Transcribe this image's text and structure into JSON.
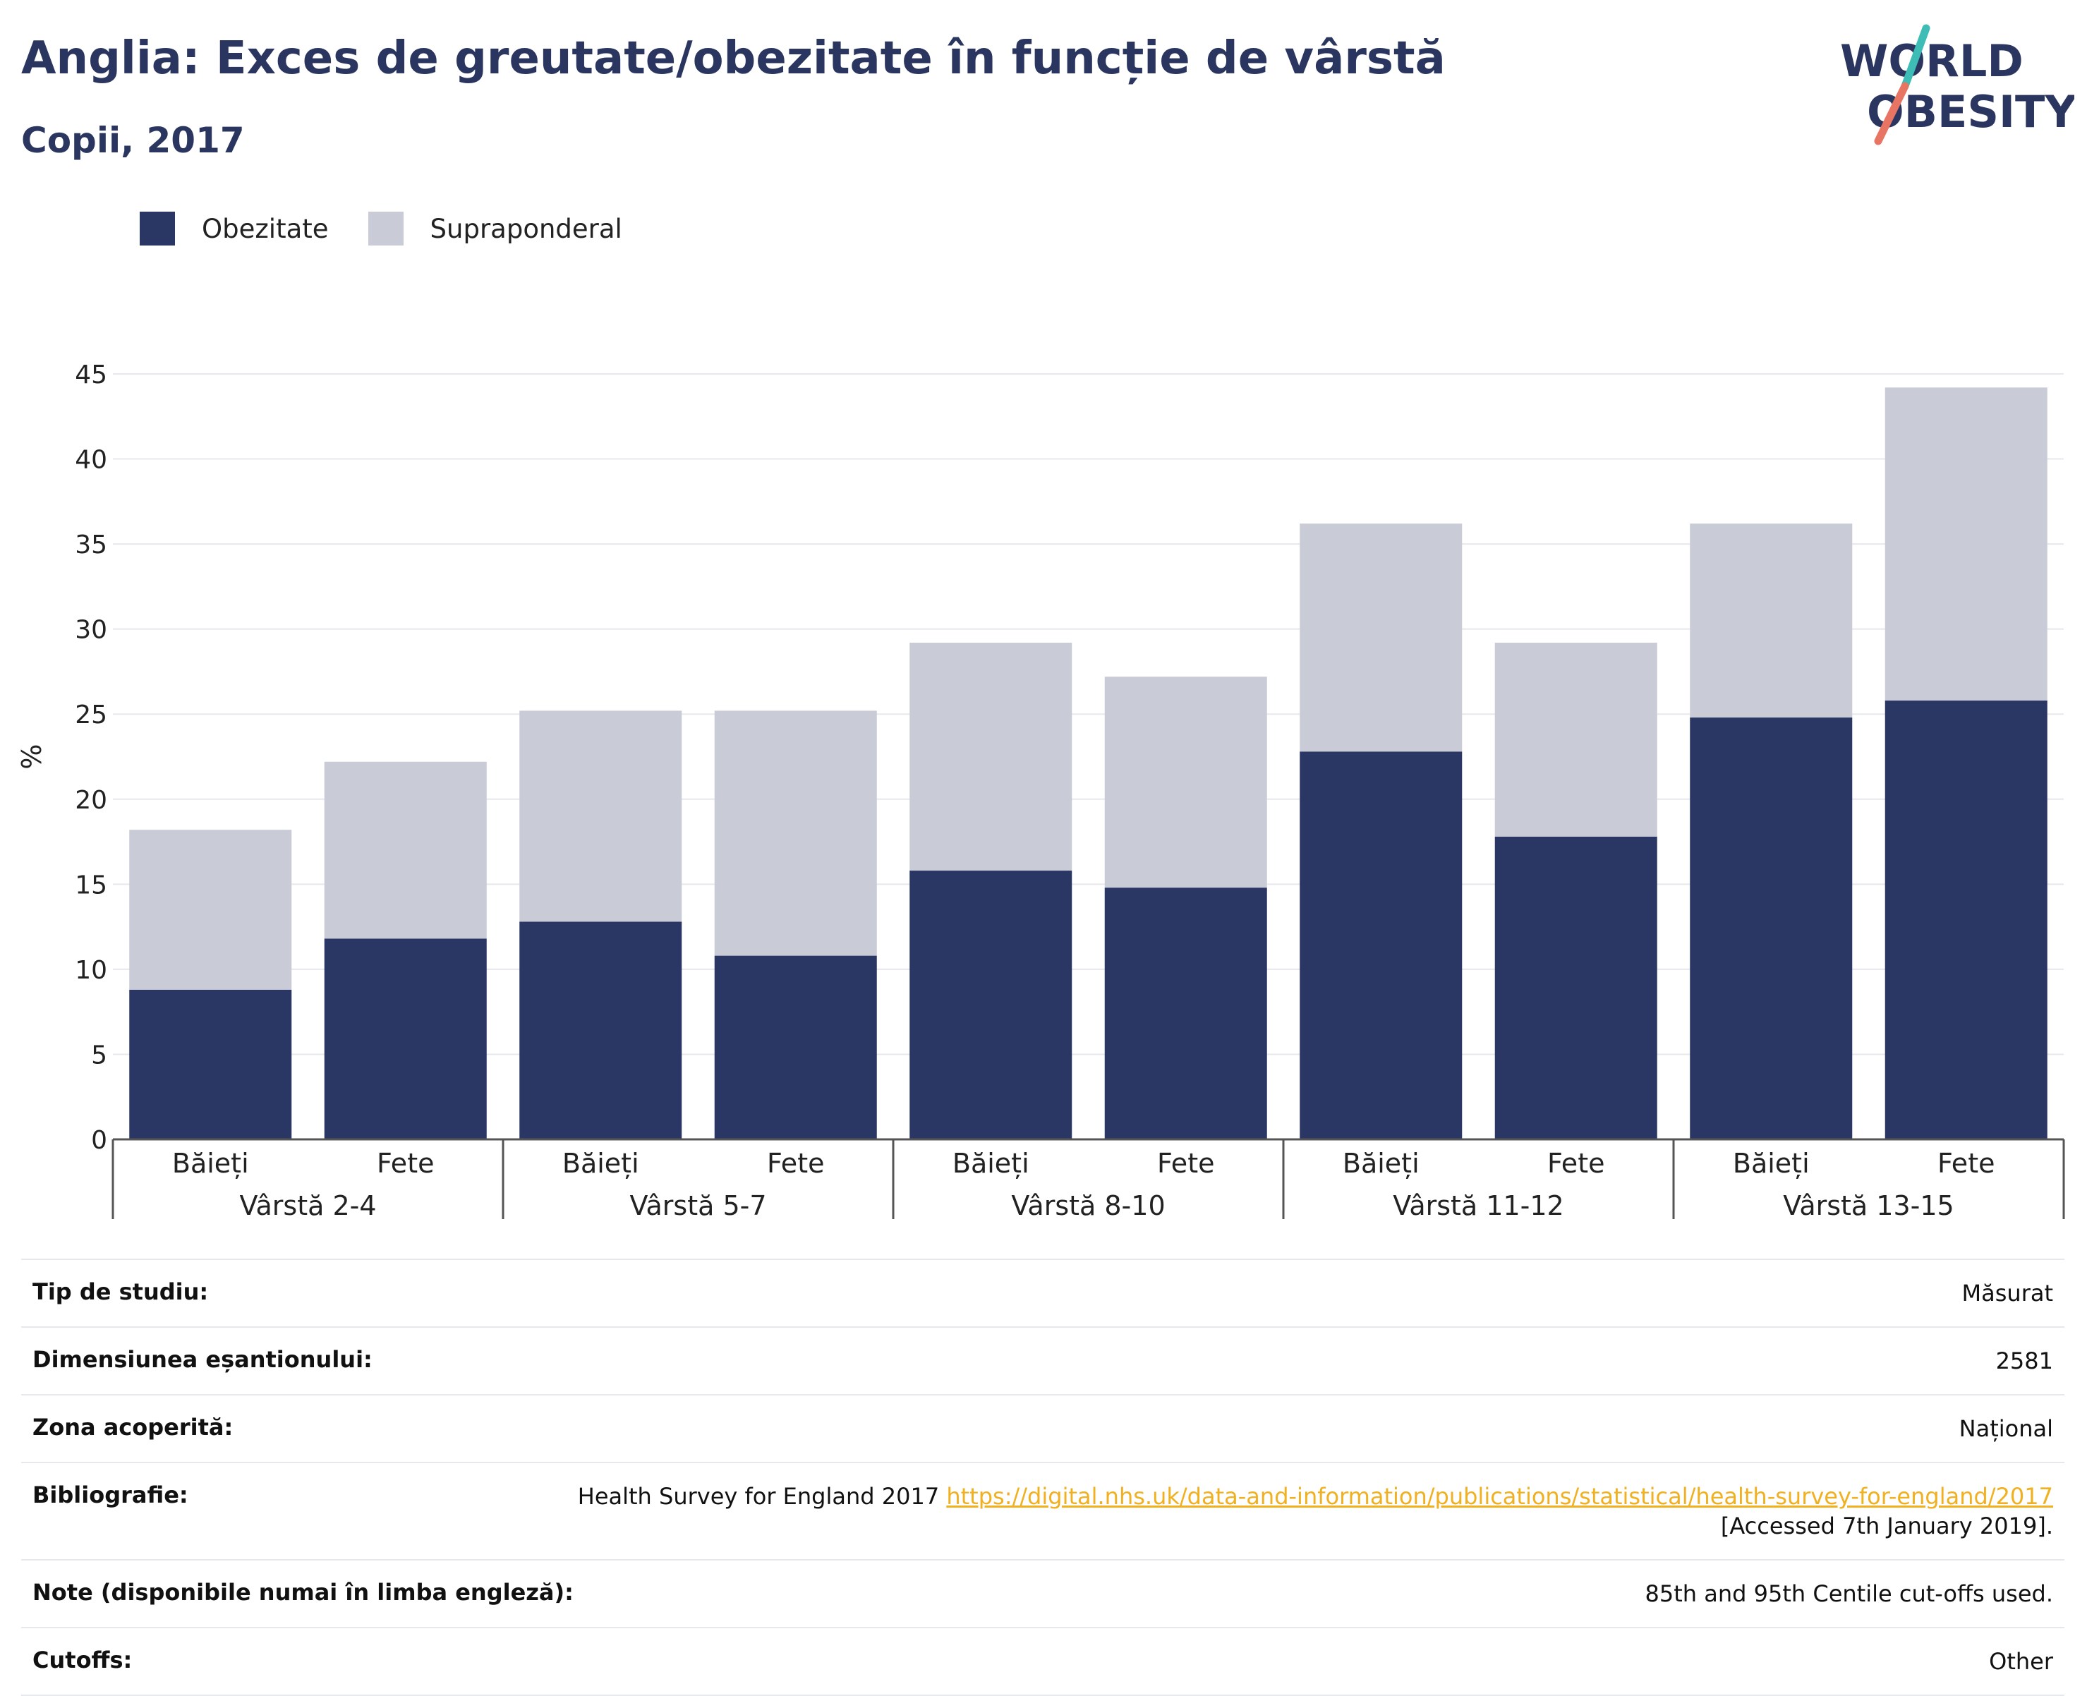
{
  "header": {
    "title": "Anglia: Exces de greutate/obezitate în funcție de vârstă",
    "subtitle": "Copii, 2017"
  },
  "logo": {
    "line1": "WORLD",
    "line2": "OBESITY"
  },
  "colors": {
    "brand_navy": "#2b3660",
    "obesity": "#2a3663",
    "overweight": "#c9cbd6",
    "link": "#f0b020",
    "logo_teal": "#3dbdb5",
    "logo_coral": "#e87464"
  },
  "chart_data": {
    "type": "bar",
    "stacked": true,
    "ylabel": "%",
    "ylim": [
      0,
      45
    ],
    "yticks": [
      0,
      5,
      10,
      15,
      20,
      25,
      30,
      35,
      40,
      45
    ],
    "grid": true,
    "legend_position": "top-left",
    "categories": [
      "Băieți",
      "Fete",
      "Băieți",
      "Fete",
      "Băieți",
      "Fete",
      "Băieți",
      "Fete",
      "Băieți",
      "Fete"
    ],
    "groups": [
      {
        "label": "Vârstă 2-4"
      },
      {
        "label": "Vârstă 5-7"
      },
      {
        "label": "Vârstă 8-10"
      },
      {
        "label": "Vârstă 11-12"
      },
      {
        "label": "Vârstă 13-15"
      }
    ],
    "series": [
      {
        "name": "Obezitate",
        "values": [
          8.8,
          11.8,
          12.8,
          10.8,
          15.8,
          14.8,
          22.8,
          17.8,
          24.8,
          25.8
        ]
      },
      {
        "name": "Supraponderal",
        "values": [
          9.4,
          10.4,
          12.4,
          14.4,
          13.4,
          12.4,
          13.4,
          11.4,
          11.4,
          18.4
        ]
      }
    ]
  },
  "info_table": [
    {
      "label": "Tip de studiu:",
      "value": "Măsurat"
    },
    {
      "label": "Dimensiunea eșantionului:",
      "value": "2581"
    },
    {
      "label": "Zona acoperită:",
      "value": "Național"
    },
    {
      "label": "Bibliografie:",
      "value_prefix": "Health Survey for England 2017",
      "link": "https://digital.nhs.uk/data-and-information/publications/statistical/health-survey-for-england/2017",
      "value_suffix": "[Accessed 7th January 2019]."
    },
    {
      "label": "Note (disponibile numai în limba engleză):",
      "value": "85th and 95th Centile cut-offs used."
    },
    {
      "label": "Cutoffs:",
      "value": "Other"
    }
  ]
}
